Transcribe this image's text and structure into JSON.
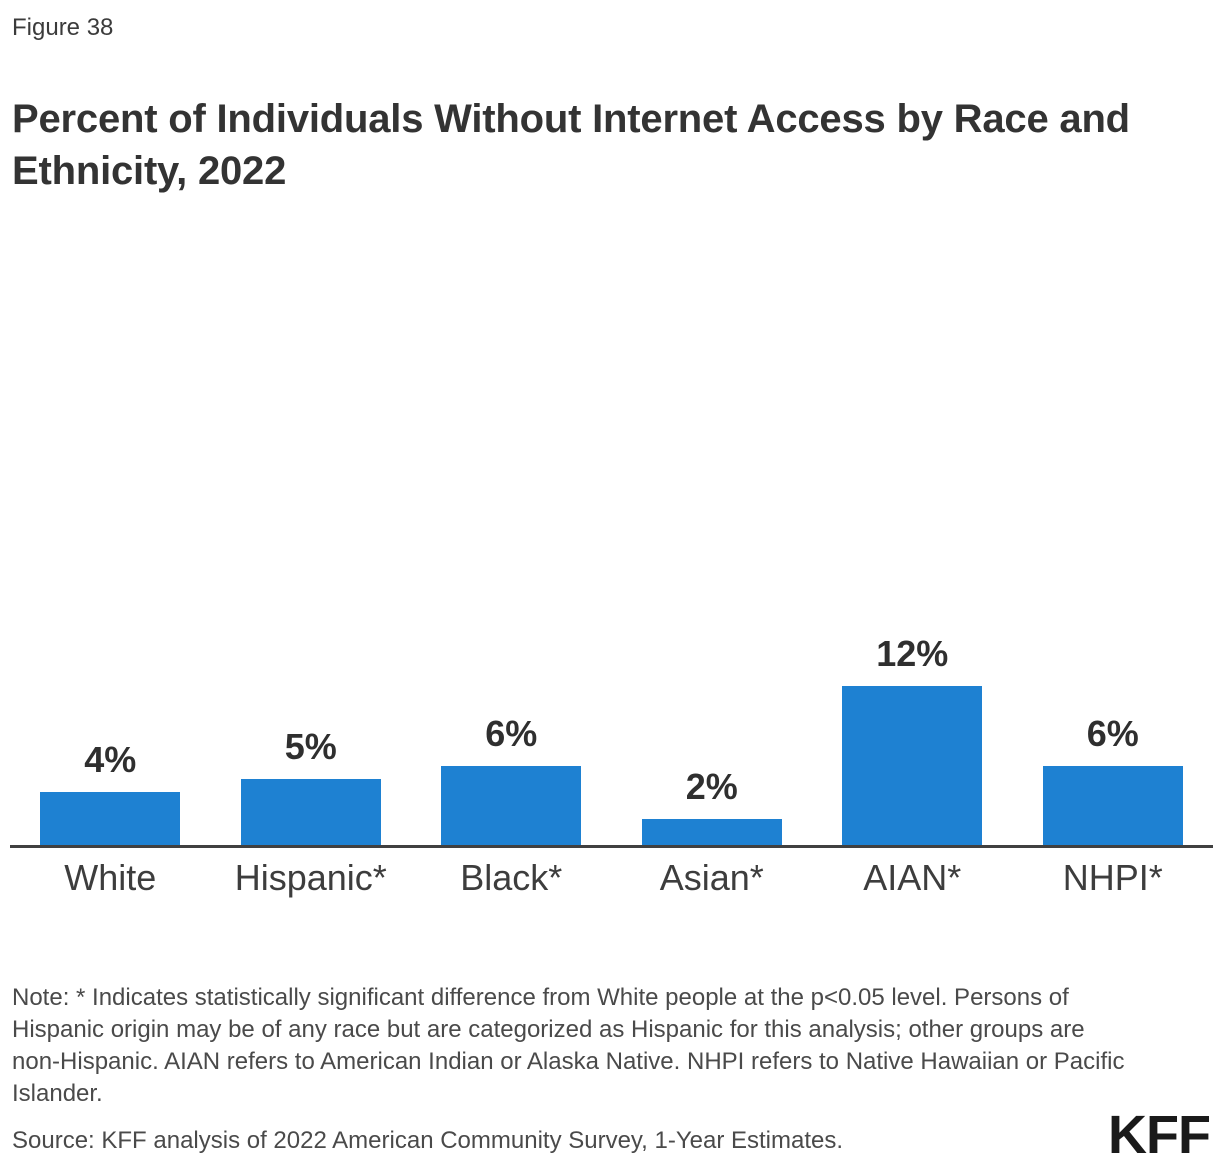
{
  "figure_label": "Figure 38",
  "title": "Percent of Individuals Without Internet Access by Race and Ethnicity, 2022",
  "note": "Note: * Indicates statistically significant difference from White people at the p<0.05 level. Persons of Hispanic origin may be of any race but are categorized as Hispanic for this analysis; other groups are non-Hispanic. AIAN refers to American Indian or Alaska Native. NHPI refers to Native Hawaiian or Pacific Islander.",
  "source": "Source: KFF analysis of 2022 American Community Survey, 1-Year Estimates.",
  "logo_text": "KFF",
  "colors": {
    "bar": "#1E81D2",
    "axis": "#404040",
    "title_text": "#333333",
    "body_text": "#4A4A4A",
    "label_text": "#3D3D3D",
    "logo_text": "#1A1A1A"
  },
  "chart_data": {
    "type": "bar",
    "title": "Percent of Individuals Without Internet Access by Race and Ethnicity, 2022",
    "categories": [
      "White",
      "Hispanic*",
      "Black*",
      "Asian*",
      "AIAN*",
      "NHPI*"
    ],
    "values": [
      4,
      5,
      6,
      2,
      12,
      6
    ],
    "value_labels": [
      "4%",
      "5%",
      "6%",
      "2%",
      "12%",
      "6%"
    ],
    "unit": "percent",
    "xlabel": "",
    "ylabel": "",
    "ylim": [
      0,
      17
    ],
    "grid": false,
    "legend": "none",
    "y_axis_visible": false,
    "data_label_position": "above-bar"
  }
}
